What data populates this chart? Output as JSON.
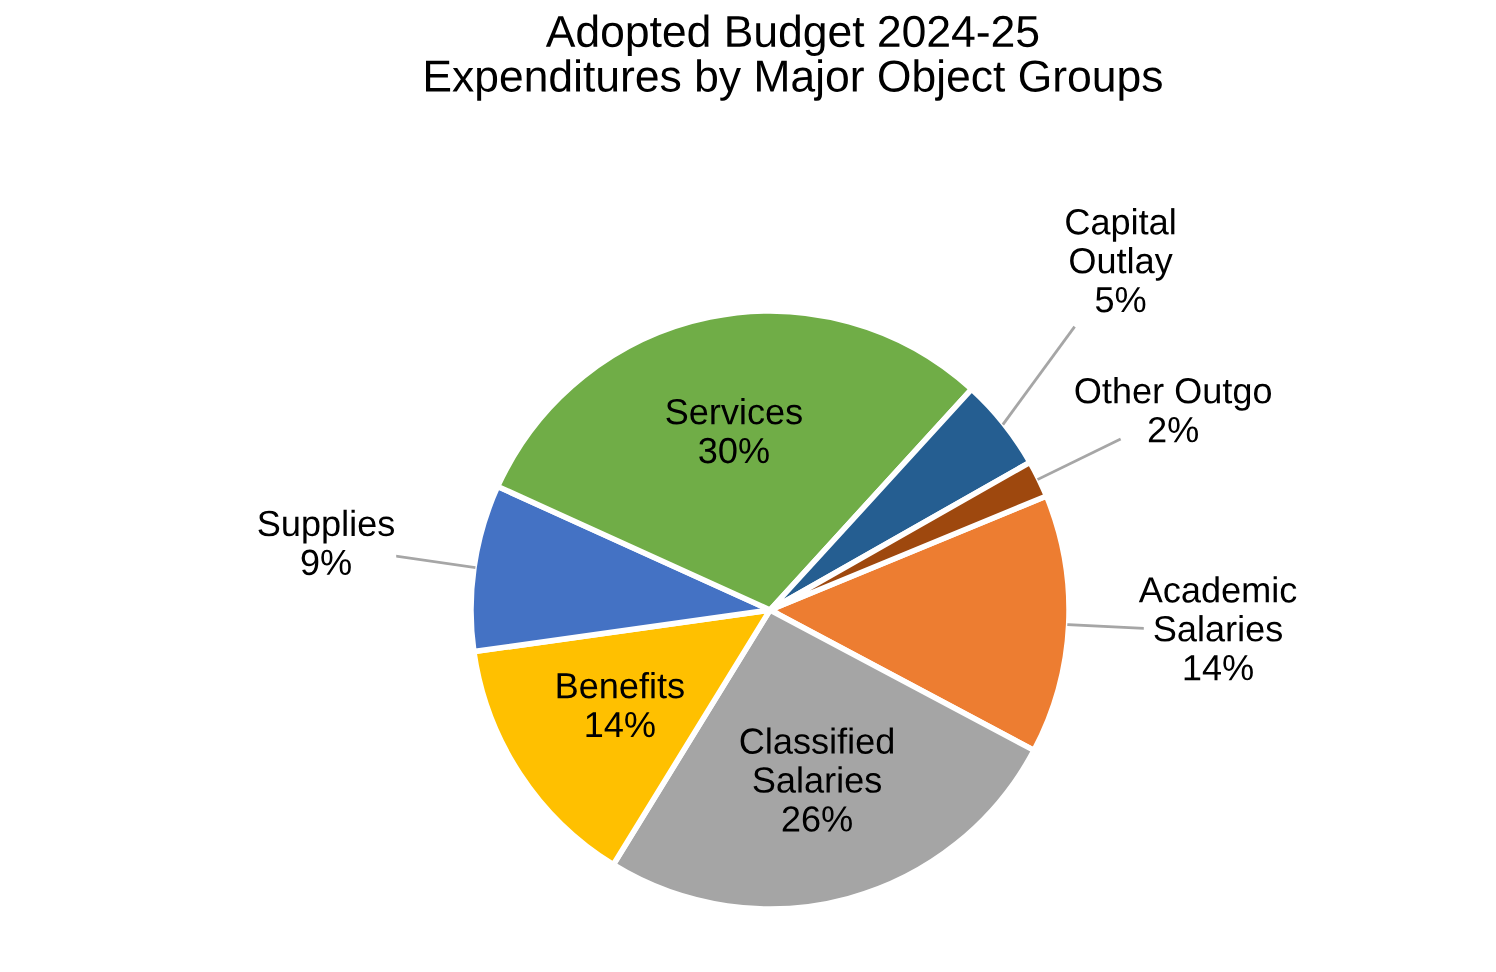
{
  "chart_data": {
    "type": "pie",
    "title": "Adopted Budget 2024-25\nExpenditures by Major Object Groups",
    "categories": [
      "Academic\nSalaries",
      "Classified\nSalaries",
      "Benefits",
      "Supplies",
      "Services",
      "Capital\nOutlay",
      "Other Outgo"
    ],
    "values": [
      14,
      26,
      14,
      9,
      30,
      5,
      2
    ],
    "value_labels": [
      "14%",
      "26%",
      "14%",
      "9%",
      "30%",
      "5%",
      "2%"
    ],
    "colors": [
      "#ed7d31",
      "#a5a5a5",
      "#ffc000",
      "#4472c4",
      "#70ad47",
      "#255e91",
      "#9e480e"
    ],
    "legend": false
  }
}
